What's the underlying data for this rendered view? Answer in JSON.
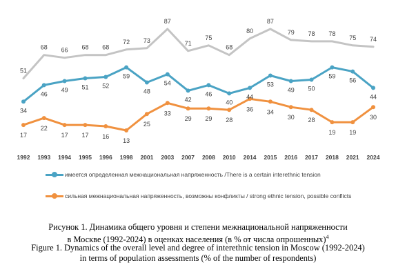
{
  "chart_data": {
    "type": "line",
    "categories": [
      "1992",
      "1993",
      "1994",
      "1995",
      "1996",
      "1998",
      "2001",
      "2003",
      "2007",
      "2008",
      "2010",
      "2014",
      "2015",
      "2016",
      "2017",
      "2018",
      "2021",
      "2024"
    ],
    "series": [
      {
        "name": "имеется определенная межнациональная напряженность /There is a certain interethnic tension",
        "color": "#4aa3c4",
        "values": [
          34,
          46,
          49,
          51,
          52,
          59,
          48,
          54,
          42,
          46,
          40,
          44,
          53,
          49,
          50,
          59,
          56,
          44
        ]
      },
      {
        "name": "сильная межнациональная напряженность, возможны конфликты / strong ethnic tension, possible conflicts",
        "color": "#f0913f",
        "values": [
          17,
          22,
          17,
          17,
          16,
          13,
          25,
          33,
          29,
          29,
          28,
          36,
          34,
          30,
          28,
          19,
          19,
          30
        ]
      },
      {
        "name": "",
        "color": "#c4c4c4",
        "values": [
          51,
          68,
          66,
          68,
          68,
          72,
          73,
          87,
          71,
          75,
          68,
          80,
          87,
          79,
          78,
          78,
          75,
          74
        ]
      }
    ],
    "legend_position": "bottom",
    "grid": false
  },
  "caption": {
    "ru_line1": "Рисунок 1. Динамика общего уровня и степени межнациональной напряженности",
    "ru_line2": "в Москве (1992-2024) в оценках населения (в % от числа опрошенных)",
    "ru_footnote": "4",
    "en_line1": "Figure 1. Dynamics of the overall level and degree of interethnic tension in Moscow (1992-2024)",
    "en_line2": "in terms of population assessments (% of the number of respondents)"
  }
}
